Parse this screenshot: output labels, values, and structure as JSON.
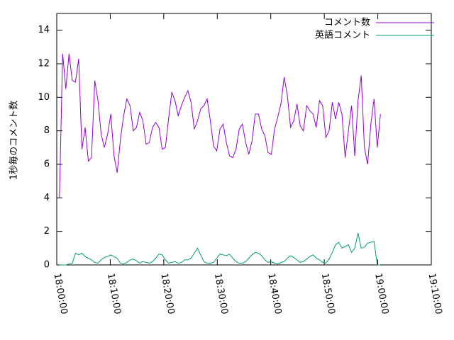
{
  "chart_data": {
    "type": "line",
    "ylabel": "1秒毎のコメント数",
    "xlim": [
      "18:00:00",
      "19:10:00"
    ],
    "xticks": [
      "18:00:00",
      "18:10:00",
      "18:20:00",
      "18:30:00",
      "18:40:00",
      "18:50:00",
      "19:00:00",
      "19:10:00"
    ],
    "ylim": [
      0,
      15
    ],
    "yticks": [
      0,
      2,
      4,
      6,
      8,
      10,
      12,
      14
    ],
    "legend": "top-right",
    "x": [
      "18:00:30",
      "18:01:06",
      "18:01:42",
      "18:02:18",
      "18:02:54",
      "18:03:30",
      "18:04:06",
      "18:04:42",
      "18:05:18",
      "18:05:54",
      "18:06:30",
      "18:07:06",
      "18:07:42",
      "18:08:18",
      "18:08:54",
      "18:09:30",
      "18:10:06",
      "18:10:42",
      "18:11:18",
      "18:11:54",
      "18:12:30",
      "18:13:06",
      "18:13:42",
      "18:14:18",
      "18:14:54",
      "18:15:30",
      "18:16:06",
      "18:16:42",
      "18:17:18",
      "18:17:54",
      "18:18:30",
      "18:19:06",
      "18:19:42",
      "18:20:18",
      "18:20:54",
      "18:21:30",
      "18:22:06",
      "18:22:42",
      "18:23:18",
      "18:23:54",
      "18:24:30",
      "18:25:06",
      "18:25:42",
      "18:26:18",
      "18:26:54",
      "18:27:30",
      "18:28:06",
      "18:28:42",
      "18:29:18",
      "18:29:54",
      "18:30:30",
      "18:31:06",
      "18:31:42",
      "18:32:18",
      "18:32:54",
      "18:33:30",
      "18:34:06",
      "18:34:42",
      "18:35:18",
      "18:35:54",
      "18:36:30",
      "18:37:06",
      "18:37:42",
      "18:38:18",
      "18:38:54",
      "18:39:30",
      "18:40:06",
      "18:40:42",
      "18:41:18",
      "18:41:54",
      "18:42:30",
      "18:43:06",
      "18:43:42",
      "18:44:18",
      "18:44:54",
      "18:45:30",
      "18:46:06",
      "18:46:42",
      "18:47:18",
      "18:47:54",
      "18:48:30",
      "18:49:06",
      "18:49:42",
      "18:50:18",
      "18:50:54",
      "18:51:30",
      "18:52:06",
      "18:52:42",
      "18:53:18",
      "18:53:54",
      "18:54:30",
      "18:55:06",
      "18:55:42",
      "18:56:18",
      "18:56:54",
      "18:57:30",
      "18:58:06",
      "18:58:42",
      "18:59:18",
      "18:59:54",
      "19:00:30"
    ],
    "series": [
      {
        "name": "コメント数",
        "color": "#9400d3",
        "values": [
          4.0,
          12.6,
          10.5,
          12.6,
          11.0,
          10.9,
          12.3,
          6.9,
          8.2,
          6.2,
          6.4,
          11.0,
          9.8,
          7.8,
          7.0,
          7.8,
          9.0,
          6.5,
          5.5,
          7.5,
          8.9,
          9.9,
          9.5,
          8.0,
          8.2,
          9.1,
          8.6,
          7.2,
          7.3,
          8.2,
          8.5,
          8.2,
          6.9,
          7.0,
          8.7,
          10.3,
          9.8,
          8.9,
          9.5,
          10.0,
          10.4,
          9.7,
          8.1,
          8.6,
          9.3,
          9.5,
          9.9,
          8.6,
          7.1,
          6.8,
          8.1,
          8.4,
          7.3,
          6.5,
          6.4,
          6.9,
          8.1,
          8.4,
          7.3,
          6.6,
          7.4,
          9.0,
          9.0,
          8.1,
          7.7,
          6.7,
          6.6,
          8.1,
          8.8,
          9.6,
          11.2,
          10.1,
          8.2,
          8.6,
          9.6,
          8.3,
          8.0,
          9.5,
          9.2,
          9.0,
          8.2,
          9.8,
          9.5,
          7.6,
          8.0,
          9.7,
          8.7,
          9.7,
          9.0,
          6.4,
          8.0,
          9.5,
          6.5,
          9.8,
          11.3,
          7.0,
          6.0,
          8.4,
          9.9,
          7.0,
          9.0
        ]
      },
      {
        "name": "英語コメント",
        "color": "#009e73",
        "values": [
          0,
          0,
          0,
          0.05,
          0.1,
          0.7,
          0.6,
          0.7,
          0.5,
          0.4,
          0.3,
          0.15,
          0.1,
          0.3,
          0.45,
          0.5,
          0.6,
          0.5,
          0.4,
          0.1,
          0.05,
          0.15,
          0.3,
          0.35,
          0.25,
          0.1,
          0.2,
          0.15,
          0.1,
          0.2,
          0.4,
          0.65,
          0.6,
          0.3,
          0.1,
          0.15,
          0.2,
          0.1,
          0.15,
          0.3,
          0.3,
          0.4,
          0.7,
          1.0,
          0.6,
          0.2,
          0.1,
          0.1,
          0.15,
          0.4,
          0.65,
          0.6,
          0.55,
          0.65,
          0.4,
          0.2,
          0.1,
          0.1,
          0.2,
          0.4,
          0.6,
          0.75,
          0.7,
          0.55,
          0.3,
          0.15,
          0.2,
          0.1,
          0.05,
          0.15,
          0.2,
          0.4,
          0.55,
          0.45,
          0.3,
          0.15,
          0.2,
          0.35,
          0.5,
          0.6,
          0.4,
          0.3,
          0.15,
          0.1,
          0.35,
          0.75,
          1.2,
          1.35,
          1.0,
          1.1,
          1.2,
          0.75,
          1.0,
          1.9,
          1.0,
          1.05,
          1.3,
          1.35,
          1.4,
          0.0,
          0.0
        ]
      }
    ]
  }
}
